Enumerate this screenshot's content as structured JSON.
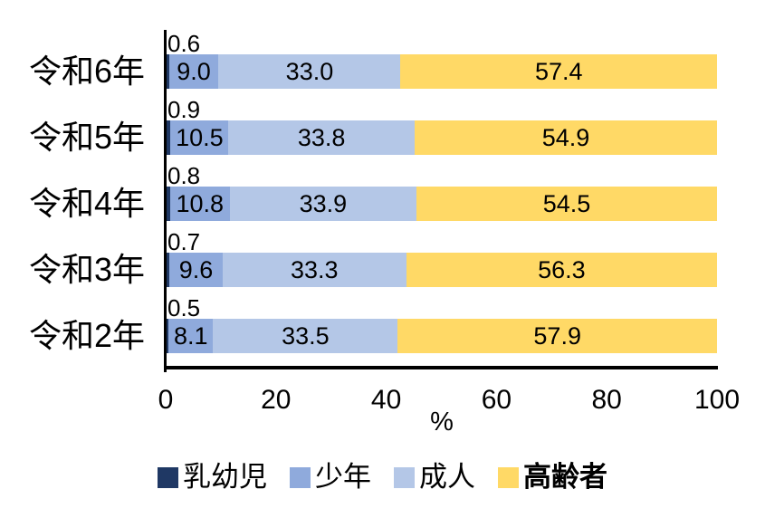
{
  "chart_data": {
    "type": "bar",
    "orientation": "horizontal",
    "stacked": true,
    "categories": [
      "令和6年",
      "令和5年",
      "令和4年",
      "令和3年",
      "令和2年"
    ],
    "series": [
      {
        "name": "乳幼児",
        "color": "#1F3864",
        "bold": false,
        "values": [
          0.6,
          0.9,
          0.8,
          0.7,
          0.5
        ]
      },
      {
        "name": "少年",
        "color": "#8FAADC",
        "bold": false,
        "values": [
          9.0,
          10.5,
          10.8,
          9.6,
          8.1
        ]
      },
      {
        "name": "成人",
        "color": "#B4C7E7",
        "bold": false,
        "values": [
          33.0,
          33.8,
          33.9,
          33.3,
          33.5
        ]
      },
      {
        "name": "高齢者",
        "color": "#FFD966",
        "bold": true,
        "values": [
          57.4,
          54.9,
          54.5,
          56.3,
          57.9
        ]
      }
    ],
    "xlabel": "%",
    "x_ticks": [
      0,
      20,
      40,
      60,
      80,
      100
    ],
    "xlim": [
      0,
      100
    ],
    "grid": false,
    "legend_position": "bottom",
    "value_label_decimals": 1,
    "axis_color": "#000000",
    "text_color": "#000000"
  }
}
